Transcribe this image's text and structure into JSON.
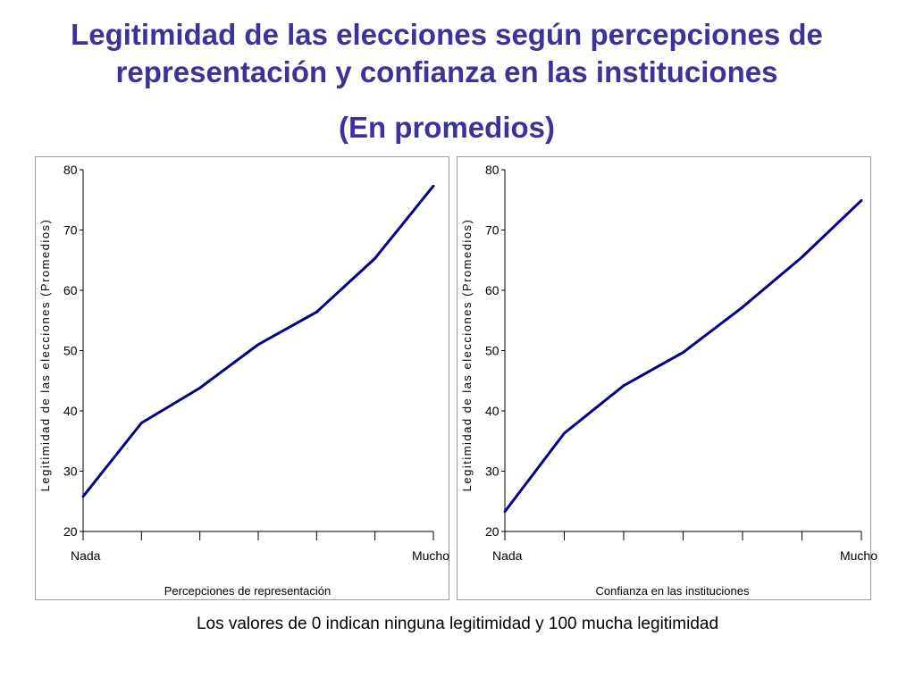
{
  "slide": {
    "title_line1": "Legitimidad de las elecciones según percepciones de",
    "title_line2": "representación y confianza en las instituciones",
    "title_line3": "(En promedios)",
    "footnote": "Los valores de 0 indican ninguna legitimidad y 100 mucha legitimidad"
  },
  "chart_data": [
    {
      "type": "line",
      "title": "",
      "xlabel": "Percepciones de representación",
      "ylabel": "Legitimidad de las elecciones (Promedios)",
      "x": [
        0,
        1,
        2,
        3,
        4,
        5,
        6
      ],
      "x_tick_labels": [
        "Nada",
        "",
        "",
        "",
        "",
        "",
        "Mucho"
      ],
      "ylim": [
        20,
        80
      ],
      "y_ticks": [
        20,
        30,
        40,
        50,
        60,
        70,
        80
      ],
      "grid": false,
      "series": [
        {
          "values": [
            25.8,
            38.0,
            43.8,
            51.0,
            56.4,
            65.3,
            77.3
          ],
          "color": "#000080"
        }
      ]
    },
    {
      "type": "line",
      "title": "",
      "xlabel": "Confianza en las instituciones",
      "ylabel": "Legitimidad de las elecciones (Promedios)",
      "x": [
        0,
        1,
        2,
        3,
        4,
        5,
        6
      ],
      "x_tick_labels": [
        "Nada",
        "",
        "",
        "",
        "",
        "",
        "Mucho"
      ],
      "ylim": [
        20,
        80
      ],
      "y_ticks": [
        20,
        30,
        40,
        50,
        60,
        70,
        80
      ],
      "grid": false,
      "series": [
        {
          "values": [
            23.3,
            36.3,
            44.2,
            49.7,
            57.2,
            65.5,
            74.9
          ],
          "color": "#000080"
        }
      ]
    }
  ]
}
